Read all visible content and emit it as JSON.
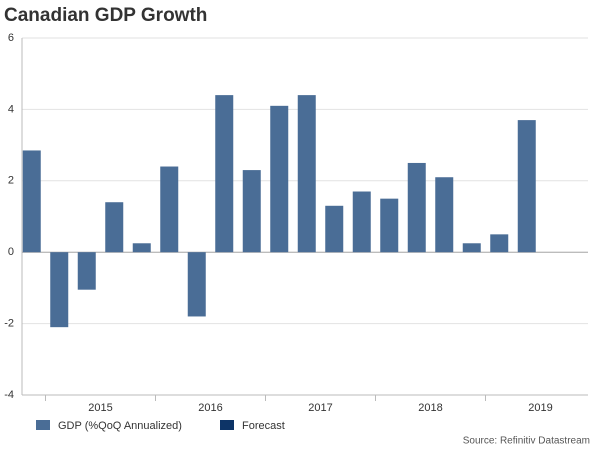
{
  "chart_data": {
    "type": "bar",
    "title": "Canadian GDP Growth",
    "source": "Source: Refinitiv Datastream",
    "categories": [
      null,
      null,
      null,
      null,
      null,
      null,
      null,
      null,
      null,
      null,
      null,
      null,
      null,
      null,
      null,
      null,
      null,
      null,
      null
    ],
    "year_labels": [
      "2015",
      "2016",
      "2017",
      "2018",
      "2019"
    ],
    "series": [
      {
        "name": "GDP (%QoQ Annualized)",
        "color": "#4a6d96",
        "values": [
          2.85,
          -2.1,
          -1.05,
          1.4,
          0.25,
          2.4,
          -1.8,
          4.4,
          2.3,
          4.1,
          4.4,
          1.3,
          1.7,
          1.5,
          2.5,
          2.1,
          0.25,
          0.5,
          3.7
        ]
      },
      {
        "name": "Forecast",
        "color": "#0d3467",
        "values": [
          null,
          null,
          null,
          null,
          null,
          null,
          null,
          null,
          null,
          null,
          null,
          null,
          null,
          null,
          null,
          null,
          null,
          null,
          null
        ]
      }
    ],
    "ylim": [
      -4,
      6
    ],
    "yticks": [
      -4,
      -2,
      0,
      2,
      4,
      6
    ],
    "grid": true
  }
}
